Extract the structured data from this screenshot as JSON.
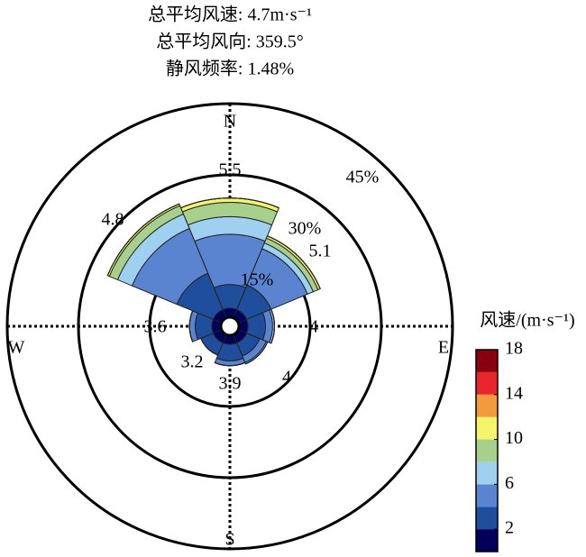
{
  "chart_data": {
    "type": "windrose",
    "title_lines": [
      "总平均风速: 4.7m·s⁻¹",
      "总平均风向: 359.5°",
      "静风频率: 1.48%"
    ],
    "compass_labels": [
      "N",
      "E",
      "S",
      "W"
    ],
    "mean_speeds": [
      5.5,
      5.1,
      4.0,
      4.0,
      3.9,
      3.2,
      3.6,
      4.8
    ],
    "rlim": [
      0,
      45
    ],
    "rticks": [
      {
        "value": 15,
        "label": "15%"
      },
      {
        "value": 30,
        "label": "30%"
      },
      {
        "value": 45,
        "label": "45%"
      }
    ],
    "series": [
      {
        "color": "#00005a",
        "values": [
          1.9,
          1.9,
          1.9,
          1.9,
          1.9,
          1.9,
          1.9,
          1.9
        ]
      },
      {
        "color": "#1f4e9c",
        "values": [
          5,
          5.6,
          3.7,
          3,
          3.5,
          2.8,
          3.5,
          8.3
        ]
      },
      {
        "color": "#5b84d0",
        "values": [
          10.6,
          8.3,
          1.5,
          1.5,
          1,
          0,
          1.2,
          10.2
        ]
      },
      {
        "color": "#9fd0f0",
        "values": [
          3.7,
          1.3,
          0.4,
          0.3,
          0,
          0,
          0,
          3.3
        ]
      },
      {
        "color": "#a8d08d",
        "values": [
          3,
          1.1,
          0,
          0,
          0,
          0,
          0,
          1.9
        ]
      },
      {
        "color": "#f5f56a",
        "values": [
          0.9,
          0.5,
          0,
          0,
          0,
          0,
          0,
          0.4
        ]
      },
      {
        "color": "#f39a3c",
        "values": [
          0,
          0,
          0,
          0,
          0,
          0,
          0,
          0
        ]
      },
      {
        "color": "#e8262a",
        "values": [
          0,
          0,
          0,
          0,
          0,
          0,
          0,
          0
        ]
      },
      {
        "color": "#8b0010",
        "values": [
          0,
          0,
          0,
          0,
          0,
          0,
          0,
          0
        ]
      }
    ],
    "colorbar": {
      "title": "风速/(m·s⁻¹)",
      "lim": [
        0,
        18
      ],
      "ticks": [
        2,
        6,
        10,
        14,
        18
      ],
      "bins": [
        0,
        2,
        4,
        6,
        8,
        10,
        12,
        14,
        16,
        18
      ]
    }
  }
}
